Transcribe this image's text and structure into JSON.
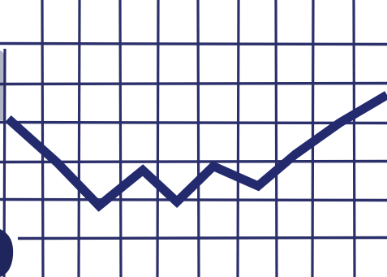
{
  "chart_data": {
    "type": "line",
    "title": "",
    "xlabel": "",
    "ylabel": "",
    "grid": true,
    "legend": "none",
    "x": [
      0,
      1,
      2,
      3,
      4,
      5,
      6,
      7,
      8,
      9
    ],
    "xlim": [
      0,
      9.6
    ],
    "ylim": [
      0,
      7
    ],
    "series": [
      {
        "values": [
          4.0,
          2.9,
          1.8,
          2.7,
          1.9,
          2.8,
          2.3,
          3.1,
          3.9,
          4.6
        ]
      }
    ]
  },
  "colors": {
    "background": "#ffffff",
    "grid": "#2b2f6a",
    "line": "#232a6e",
    "corner_shape": "#1f265e"
  }
}
